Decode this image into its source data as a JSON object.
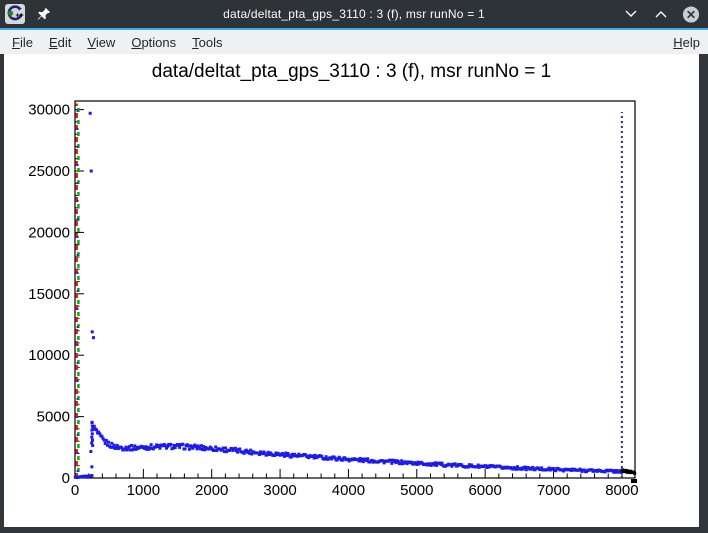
{
  "window": {
    "title": "data/deltat_pta_gps_3110 : 3 (f), msr runNo = 1",
    "accent_color": "#3daee9",
    "titlebar_bg": "#2e3338",
    "buttons": {
      "minimize": "chevron-down",
      "maximize": "chevron-up",
      "close": "circled-x"
    },
    "icons": [
      "root-app-icon",
      "pin-icon"
    ]
  },
  "menu": {
    "items": [
      {
        "label": "File"
      },
      {
        "label": "Edit"
      },
      {
        "label": "View"
      },
      {
        "label": "Options"
      },
      {
        "label": "Tools"
      }
    ],
    "help": {
      "label": "Help"
    }
  },
  "chart_data": {
    "type": "scatter",
    "title": "data/deltat_pta_gps_3110 : 3 (f), msr runNo = 1",
    "xlabel": "",
    "ylabel": "",
    "xlim": [
      0,
      8192
    ],
    "ylim": [
      0,
      30700
    ],
    "x_ticks": [
      0,
      1000,
      2000,
      3000,
      4000,
      5000,
      6000,
      7000,
      8000
    ],
    "y_ticks": [
      0,
      5000,
      10000,
      15000,
      20000,
      25000,
      30000
    ],
    "x_minor_step": 200,
    "y_minor_step": 1000,
    "grid": false,
    "legend": false,
    "marker_size_px": 3,
    "series": [
      {
        "name": "decay-histogram-band",
        "marker": "square",
        "color": "#1b1bf0",
        "x_start": 250,
        "x_end": 8000,
        "step": 16,
        "band_halfwidth_base": 70,
        "band_halfwidth_rel": 0.05,
        "curve_anchors": [
          [
            250,
            4350
          ],
          [
            270,
            4150
          ],
          [
            300,
            3900
          ],
          [
            340,
            3550
          ],
          [
            390,
            3200
          ],
          [
            450,
            2900
          ],
          [
            520,
            2680
          ],
          [
            600,
            2530
          ],
          [
            700,
            2460
          ],
          [
            850,
            2460
          ],
          [
            1000,
            2500
          ],
          [
            1200,
            2550
          ],
          [
            1400,
            2580
          ],
          [
            1600,
            2550
          ],
          [
            1800,
            2490
          ],
          [
            2000,
            2410
          ],
          [
            2300,
            2270
          ],
          [
            2600,
            2120
          ],
          [
            3000,
            1930
          ],
          [
            3400,
            1760
          ],
          [
            3800,
            1600
          ],
          [
            4200,
            1460
          ],
          [
            4600,
            1330
          ],
          [
            5000,
            1200
          ],
          [
            5400,
            1080
          ],
          [
            5800,
            970
          ],
          [
            6200,
            870
          ],
          [
            6600,
            780
          ],
          [
            7000,
            700
          ],
          [
            7400,
            630
          ],
          [
            7700,
            580
          ],
          [
            8000,
            540
          ]
        ]
      },
      {
        "name": "pre-t0-baseline",
        "marker": "square",
        "color": "#1b1bf0",
        "x_start": 5,
        "x_end": 248,
        "step": 9,
        "band_halfwidth_base": 26,
        "band_halfwidth_rel": 0,
        "curve_anchors": [
          [
            5,
            45
          ],
          [
            250,
            190
          ]
        ]
      },
      {
        "name": "overflow-tail-black",
        "marker": "square",
        "color": "#000000",
        "x_start": 8005,
        "x_end": 8190,
        "step": 7,
        "band_halfwidth_base": 72,
        "band_halfwidth_rel": 0,
        "curve_anchors": [
          [
            8005,
            600
          ],
          [
            8190,
            430
          ]
        ]
      }
    ],
    "outliers": [
      [
        222,
        29700
      ],
      [
        237,
        25000
      ],
      [
        252,
        11900
      ],
      [
        270,
        11430
      ],
      [
        232,
        2160
      ],
      [
        247,
        910
      ],
      [
        250,
        4480
      ],
      [
        255,
        4200
      ],
      [
        248,
        3900
      ],
      [
        253,
        3600
      ],
      [
        246,
        3320
      ],
      [
        256,
        3080
      ],
      [
        244,
        2850
      ],
      [
        258,
        2650
      ]
    ],
    "vlines": [
      {
        "name": "t0-marker-line-red",
        "x": 25,
        "color": "#dd2222",
        "width": 2.5,
        "dash": "5 7",
        "dashoffset": 0,
        "y0": 0,
        "y1": 30500
      },
      {
        "name": "t0-marker-line-green",
        "x": 50,
        "color": "#11aa11",
        "width": 2.5,
        "dash": "4 8",
        "dashoffset": 6,
        "y0": 0,
        "y1": 30500
      },
      {
        "name": "t0-marker-line-blue",
        "x": 38,
        "color": "#2233cc",
        "width": 2,
        "dash": "2 16",
        "dashoffset": 12,
        "y0": 0,
        "y1": 30500
      },
      {
        "name": "last-good-bin-line",
        "x": 8000,
        "color": "#2b2ba0",
        "width": 2,
        "dash": "2 3",
        "dashoffset": 0,
        "y0": 0,
        "y1": 29800
      }
    ]
  }
}
